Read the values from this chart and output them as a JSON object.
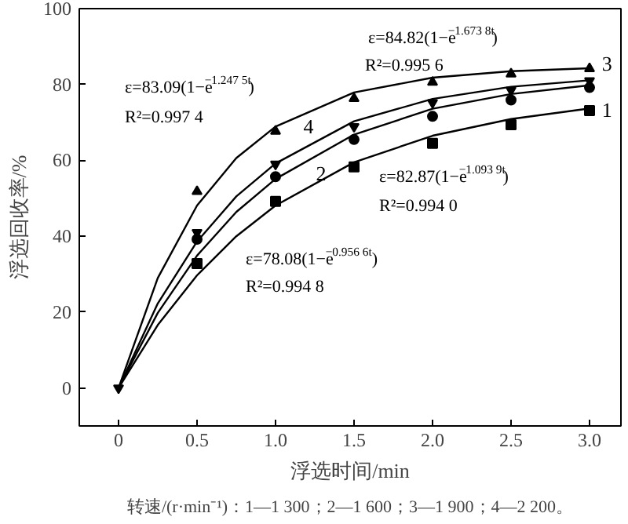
{
  "chart_data": {
    "type": "scatter",
    "xlabel": "浮选时间/min",
    "ylabel": "浮选回收率/%",
    "xlim": [
      -0.25,
      3.2
    ],
    "ylim": [
      -10,
      100
    ],
    "xticks": [
      0,
      0.5,
      {
        "value": 1,
        "label": "1.0"
      },
      1.5,
      {
        "value": 2,
        "label": "2.0"
      },
      2.5,
      {
        "value": 3,
        "label": "3.0"
      }
    ],
    "yticks": [
      0,
      20,
      40,
      60,
      80,
      100
    ],
    "grid": false,
    "x": [
      0,
      0.5,
      1,
      1.5,
      2,
      2.5,
      3
    ],
    "series": [
      {
        "marker": "square",
        "color": "#000000",
        "values": [
          null,
          32.8,
          49.2,
          58.3,
          64.5,
          69.4,
          73.1
        ]
      },
      {
        "marker": "circle",
        "color": "#000000",
        "values": [
          null,
          39.2,
          55.7,
          65.5,
          71.6,
          75.9,
          79.2
        ]
      },
      {
        "marker": "triangle",
        "color": "#000000",
        "values": [
          null,
          51.8,
          67.7,
          76.3,
          80.6,
          82.8,
          84.2
        ]
      },
      {
        "marker": "triangle",
        "color": "#000000",
        "values": [
          0,
          41,
          59,
          68.9,
          75.2,
          78.5,
          81
        ]
      },
      {
        "type": "line",
        "name": "1",
        "color": "#000000",
        "x": [
          0,
          0.25,
          0.5,
          0.75,
          1,
          1.5,
          2,
          2.5,
          3
        ],
        "values": [
          0,
          16.6,
          29.7,
          40,
          48.1,
          59.5,
          66.5,
          70.9,
          73.7
        ]
      },
      {
        "type": "line",
        "name": "2",
        "color": "#000000",
        "x": [
          0,
          0.25,
          0.5,
          0.75,
          1,
          1.5,
          2,
          2.5,
          3
        ],
        "values": [
          0,
          19.8,
          34.9,
          46.4,
          55.1,
          66.8,
          73.6,
          77.5,
          79.8
        ]
      },
      {
        "type": "line",
        "name": "3",
        "color": "#000000",
        "x": [
          0,
          0.25,
          0.5,
          0.75,
          1,
          1.5,
          2,
          2.5,
          3
        ],
        "values": [
          0,
          29,
          48.1,
          60.6,
          68.9,
          77.9,
          81.8,
          83.5,
          84.3
        ]
      },
      {
        "type": "line",
        "name": "4",
        "color": "#000000",
        "x": [
          0,
          0.25,
          0.5,
          0.75,
          1,
          1.5,
          2,
          2.5,
          3
        ],
        "values": [
          0,
          22.3,
          38.6,
          50.5,
          59.2,
          70.3,
          76.2,
          79.4,
          81.1
        ]
      }
    ],
    "annotations": [
      "ε=84.82(1−e$^{−1.673 8t}$)",
      "R²=0.995 6",
      "ε=83.09(1−e$^{−1.247 5t}$)",
      "R²=0.997 4",
      "ε=82.87(1−e$^{−1.093 9t}$)",
      "R²=0.994 0",
      "ε=78.08(1−e$^{−0.956 6t}$)",
      "R²=0.994 8",
      "转速/(r·min⁻¹)：1—1 300；2—1 600；3—1 900；4—2 200。"
    ]
  }
}
